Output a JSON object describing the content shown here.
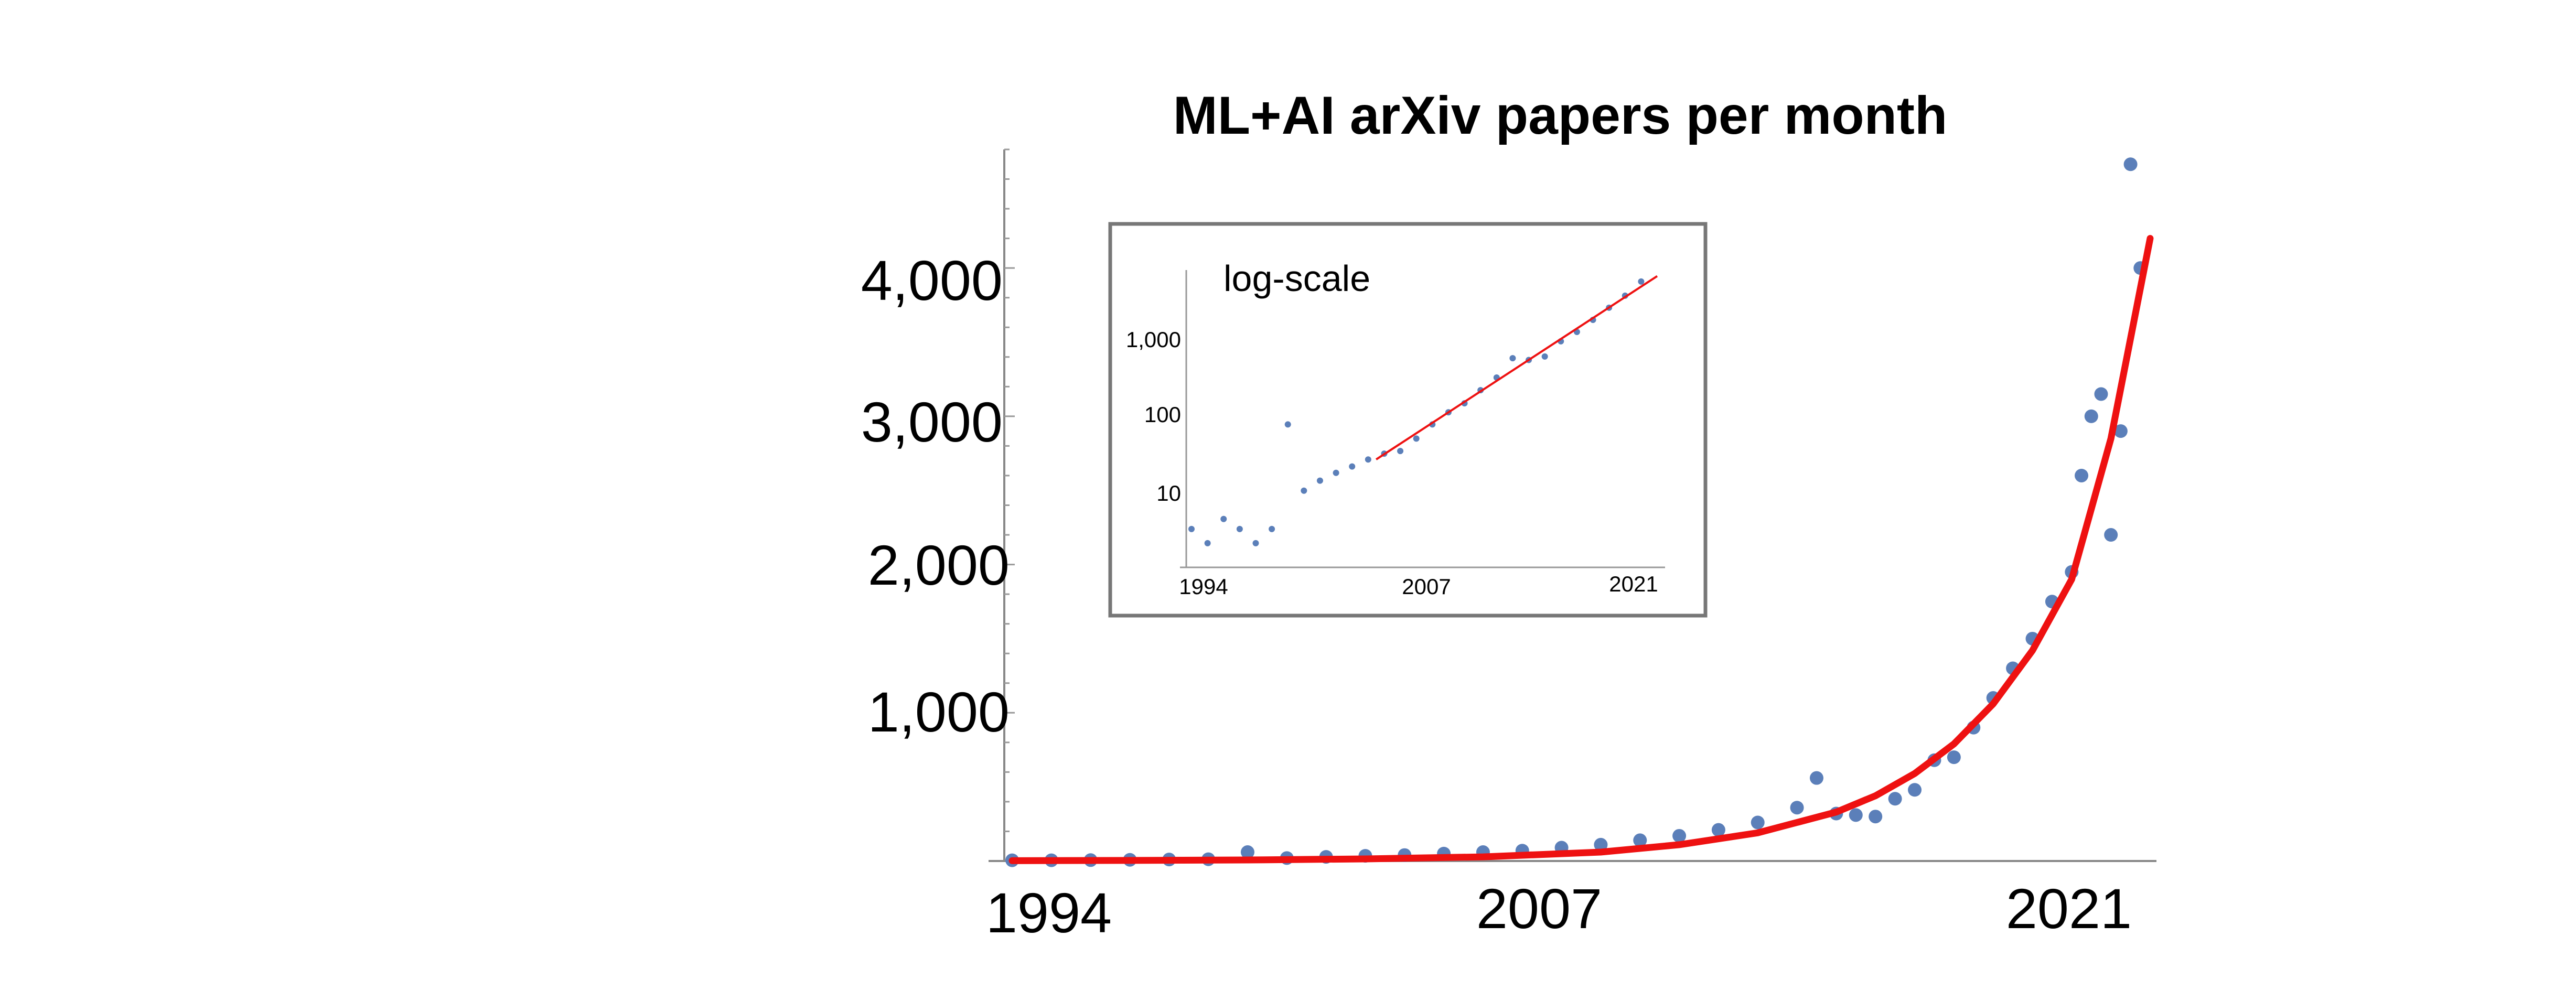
{
  "chart_data": [
    {
      "type": "scatter",
      "title": "ML+AI arXiv papers per month",
      "xlabel": "",
      "ylabel": "",
      "x_ticks": [
        "1994",
        "2007",
        "2021"
      ],
      "y_ticks": [
        "1,000",
        "2,000",
        "3,000",
        "4,000"
      ],
      "xlim": [
        1994,
        2023
      ],
      "ylim": [
        0,
        4800
      ],
      "grid": false,
      "colors": {
        "points": "#5b7fb9",
        "fit": "#ee1111"
      },
      "series": [
        {
          "type": "scatter",
          "x": [
            1994.0,
            1995.0,
            1996.0,
            1997.0,
            1998.0,
            1999.0,
            2000.0,
            2001.0,
            2002.0,
            2003.0,
            2004.0,
            2005.0,
            2006.0,
            2007.0,
            2008.0,
            2009.0,
            2010.0,
            2011.0,
            2012.0,
            2013.0,
            2014.0,
            2014.5,
            2015.0,
            2015.5,
            2016.0,
            2016.5,
            2017.0,
            2017.5,
            2018.0,
            2018.5,
            2019.0,
            2019.5,
            2020.0,
            2020.5,
            2021.0,
            2021.25,
            2021.5,
            2021.75,
            2022.0,
            2022.25,
            2022.5,
            2022.75
          ],
          "y": [
            5,
            5,
            6,
            8,
            10,
            12,
            60,
            20,
            28,
            35,
            40,
            50,
            60,
            70,
            90,
            110,
            140,
            170,
            210,
            260,
            360,
            560,
            320,
            310,
            300,
            420,
            480,
            680,
            700,
            900,
            1100,
            1300,
            1500,
            1750,
            1950,
            2600,
            3000,
            3150,
            2200,
            2900,
            4700,
            4000
          ]
        },
        {
          "type": "line",
          "name": "",
          "x": [
            1994,
            1997,
            2000,
            2003,
            2006,
            2009,
            2011,
            2013,
            2015,
            2016,
            2017,
            2018,
            2019,
            2020,
            2021,
            2022,
            2023
          ],
          "y": [
            2,
            4,
            7,
            14,
            28,
            60,
            110,
            190,
            330,
            440,
            590,
            790,
            1060,
            1420,
            1900,
            2850,
            4200
          ]
        }
      ]
    },
    {
      "type": "scatter",
      "title": "",
      "annotation": "log-scale",
      "x_ticks": [
        "1994",
        "2007",
        "2021"
      ],
      "y_ticks": [
        "10",
        "100",
        "1,000"
      ],
      "y_scale": "log",
      "xlim": [
        1994,
        2023
      ],
      "ylim": [
        1,
        5000
      ],
      "grid": false,
      "series": [
        {
          "type": "scatter",
          "x": [
            1994.0,
            1995.0,
            1996.0,
            1997.0,
            1998.0,
            1999.0,
            2000.0,
            2001.0,
            2002.0,
            2003.0,
            2004.0,
            2005.0,
            2006.0,
            2007.0,
            2008.0,
            2009.0,
            2010.0,
            2011.0,
            2012.0,
            2013.0,
            2014.0,
            2015.0,
            2016.0,
            2017.0,
            2018.0,
            2019.0,
            2020.0,
            2021.0,
            2022.0
          ],
          "y": [
            3,
            2,
            4,
            3,
            2,
            3,
            60,
            9,
            12,
            15,
            18,
            22,
            26,
            28,
            40,
            60,
            85,
            110,
            160,
            230,
            400,
            380,
            420,
            650,
            850,
            1200,
            1700,
            2400,
            3600
          ]
        },
        {
          "type": "line",
          "name": "",
          "x": [
            2005.5,
            2023.0
          ],
          "y": [
            22,
            4200
          ]
        }
      ]
    }
  ]
}
